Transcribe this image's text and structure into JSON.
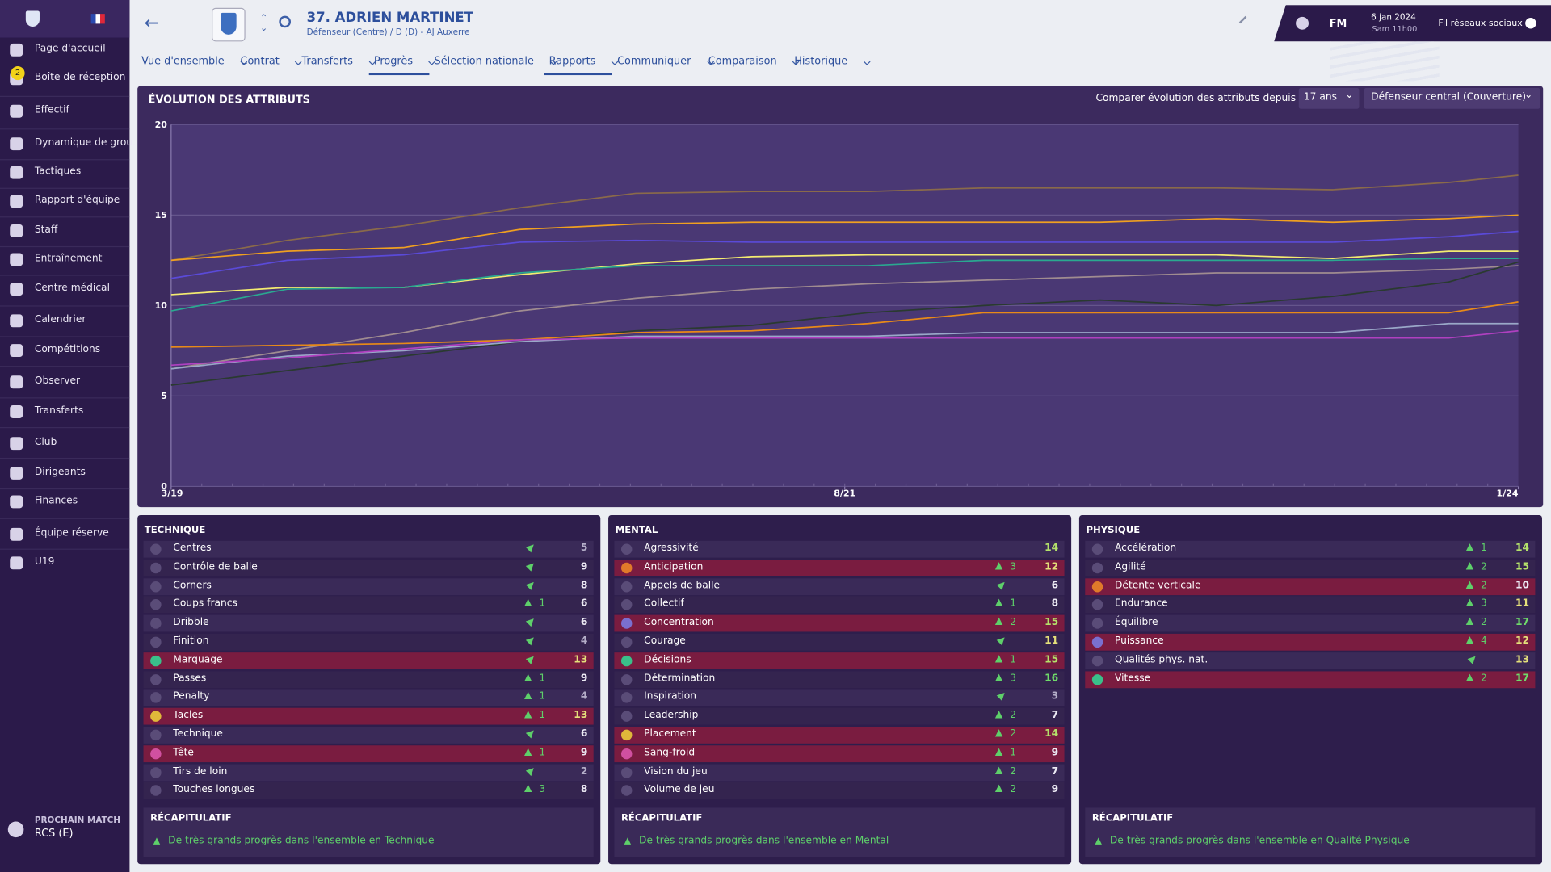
{
  "sidebar": {
    "items": [
      "Page d'accueil",
      "Boîte de réception",
      "Effectif",
      "Dynamique de grou...",
      "Tactiques",
      "Rapport d'équipe",
      "Staff",
      "Entraînement",
      "Centre médical",
      "Calendrier",
      "Compétitions",
      "Observer",
      "Transferts",
      "Club",
      "Dirigeants",
      "Finances",
      "Équipe réserve",
      "U19"
    ],
    "inbox_badge": "2",
    "next_match_label": "PROCHAIN MATCH",
    "next_match": "RCS (E)"
  },
  "header": {
    "player": "37. ADRIEN MARTINET",
    "subtitle": "Défenseur (Centre) / D (D) - AJ Auxerre",
    "brand": "FM",
    "date": "6 jan 2024",
    "time": "Sam 11h00",
    "social": "Fil réseaux sociaux"
  },
  "tabs": [
    {
      "label": "Vue d'ensemble"
    },
    {
      "label": "Contrat"
    },
    {
      "label": "Transferts"
    },
    {
      "label": "Progrès",
      "active": true
    },
    {
      "label": "Sélection nationale"
    },
    {
      "label": "Rapports",
      "active": true
    },
    {
      "label": "Communiquer"
    },
    {
      "label": "Comparaison"
    },
    {
      "label": "Historique"
    }
  ],
  "compare": {
    "label": "Comparer évolution des attributs depuis",
    "age": "17 ans",
    "role": "Défenseur central (Couverture)"
  },
  "chart_data": {
    "type": "line",
    "title": "ÉVOLUTION DES ATTRIBUTS",
    "x": [
      0,
      5,
      10,
      15,
      20,
      25,
      30,
      35,
      40,
      45,
      50,
      55,
      58
    ],
    "xlim": [
      0,
      58
    ],
    "xticks": [
      {
        "value": 0,
        "label": "3/19"
      },
      {
        "value": 29,
        "label": "8/21"
      },
      {
        "value": 58,
        "label": "1/24"
      }
    ],
    "ylim": [
      0,
      20
    ],
    "yticks": [
      0,
      5,
      10,
      15,
      20
    ],
    "grid": true,
    "series": [
      {
        "color": "#8a6a4a",
        "values": [
          12.5,
          13.6,
          14.4,
          15.4,
          16.2,
          16.3,
          16.3,
          16.5,
          16.5,
          16.5,
          16.4,
          16.8,
          17.2
        ]
      },
      {
        "color": "#f0a020",
        "values": [
          12.5,
          13,
          13.2,
          14.2,
          14.5,
          14.6,
          14.6,
          14.6,
          14.6,
          14.8,
          14.6,
          14.8,
          15
        ]
      },
      {
        "color": "#5a4ad8",
        "values": [
          11.5,
          12.5,
          12.8,
          13.5,
          13.6,
          13.5,
          13.5,
          13.5,
          13.5,
          13.5,
          13.5,
          13.8,
          14.1
        ]
      },
      {
        "color": "#f4ec70",
        "values": [
          10.6,
          11,
          11,
          11.7,
          12.3,
          12.7,
          12.8,
          12.8,
          12.8,
          12.8,
          12.6,
          13,
          13
        ]
      },
      {
        "color": "#2aa890",
        "values": [
          9.7,
          10.9,
          11,
          11.8,
          12.2,
          12.2,
          12.2,
          12.5,
          12.5,
          12.5,
          12.5,
          12.6,
          12.6
        ]
      },
      {
        "color": "#a08c90",
        "values": [
          6.5,
          7.5,
          8.5,
          9.7,
          10.4,
          10.9,
          11.2,
          11.4,
          11.6,
          11.8,
          11.8,
          12,
          12.2
        ]
      },
      {
        "color": "#2a3a30",
        "values": [
          5.6,
          6.4,
          7.2,
          8,
          8.6,
          8.9,
          9.6,
          10,
          10.3,
          10,
          10.5,
          11.3,
          12.4
        ]
      },
      {
        "color": "#e88a18",
        "values": [
          7.7,
          7.8,
          7.9,
          8.1,
          8.5,
          8.6,
          9,
          9.6,
          9.6,
          9.6,
          9.6,
          9.6,
          10.2
        ]
      },
      {
        "color": "#9aa8c8",
        "values": [
          6.5,
          7.2,
          7.5,
          8,
          8.3,
          8.3,
          8.3,
          8.5,
          8.5,
          8.5,
          8.5,
          9,
          9
        ]
      },
      {
        "color": "#b040c0",
        "values": [
          6.7,
          7.1,
          7.6,
          8.1,
          8.2,
          8.2,
          8.2,
          8.2,
          8.2,
          8.2,
          8.2,
          8.2,
          8.6
        ]
      }
    ]
  },
  "sections": [
    {
      "title": "TECHNIQUE",
      "summary_title": "RÉCAPITULATIF",
      "summary": "De très grands progrès dans l'ensemble en Technique",
      "rows": [
        {
          "name": "Centres",
          "trend": "slight",
          "value": 5
        },
        {
          "name": "Contrôle de balle",
          "trend": "slight",
          "value": 9
        },
        {
          "name": "Corners",
          "trend": "slight",
          "value": 8
        },
        {
          "name": "Coups francs",
          "trend": "up",
          "change": 1,
          "value": 6
        },
        {
          "name": "Dribble",
          "trend": "slight",
          "value": 6
        },
        {
          "name": "Finition",
          "trend": "slight",
          "value": 4
        },
        {
          "name": "Marquage",
          "trend": "slight",
          "value": 13,
          "highlight": true
        },
        {
          "name": "Passes",
          "trend": "up",
          "change": 1,
          "value": 9
        },
        {
          "name": "Penalty",
          "trend": "up",
          "change": 1,
          "value": 4
        },
        {
          "name": "Tacles",
          "trend": "up",
          "change": 1,
          "value": 13,
          "highlight": true
        },
        {
          "name": "Technique",
          "trend": "slight",
          "value": 6
        },
        {
          "name": "Tête",
          "trend": "up",
          "change": 1,
          "value": 9,
          "highlight": true
        },
        {
          "name": "Tirs de loin",
          "trend": "slight",
          "value": 2
        },
        {
          "name": "Touches longues",
          "trend": "up",
          "change": 3,
          "value": 8
        }
      ]
    },
    {
      "title": "MENTAL",
      "summary_title": "RÉCAPITULATIF",
      "summary": "De très grands progrès dans l'ensemble en Mental",
      "rows": [
        {
          "name": "Agressivité",
          "value": 14
        },
        {
          "name": "Anticipation",
          "trend": "up",
          "change": 3,
          "value": 12,
          "highlight": true
        },
        {
          "name": "Appels de balle",
          "trend": "slight",
          "value": 6
        },
        {
          "name": "Collectif",
          "trend": "up",
          "change": 1,
          "value": 8
        },
        {
          "name": "Concentration",
          "trend": "up",
          "change": 2,
          "value": 15,
          "highlight": true
        },
        {
          "name": "Courage",
          "trend": "slight",
          "value": 11
        },
        {
          "name": "Décisions",
          "trend": "up",
          "change": 1,
          "value": 15,
          "highlight": true
        },
        {
          "name": "Détermination",
          "trend": "up",
          "change": 3,
          "value": 16
        },
        {
          "name": "Inspiration",
          "trend": "slight",
          "value": 3
        },
        {
          "name": "Leadership",
          "trend": "up",
          "change": 2,
          "value": 7
        },
        {
          "name": "Placement",
          "trend": "up",
          "change": 2,
          "value": 14,
          "highlight": true
        },
        {
          "name": "Sang-froid",
          "trend": "up",
          "change": 1,
          "value": 9,
          "highlight": true
        },
        {
          "name": "Vision du jeu",
          "trend": "up",
          "change": 2,
          "value": 7
        },
        {
          "name": "Volume de jeu",
          "trend": "up",
          "change": 2,
          "value": 9
        }
      ]
    },
    {
      "title": "PHYSIQUE",
      "summary_title": "RÉCAPITULATIF",
      "summary": "De très grands progrès dans l'ensemble en Qualité Physique",
      "rows": [
        {
          "name": "Accélération",
          "trend": "up",
          "change": 1,
          "value": 14
        },
        {
          "name": "Agilité",
          "trend": "up",
          "change": 2,
          "value": 15
        },
        {
          "name": "Détente verticale",
          "trend": "up",
          "change": 2,
          "value": 10,
          "highlight": true
        },
        {
          "name": "Endurance",
          "trend": "up",
          "change": 3,
          "value": 11
        },
        {
          "name": "Équilibre",
          "trend": "up",
          "change": 2,
          "value": 17
        },
        {
          "name": "Puissance",
          "trend": "up",
          "change": 4,
          "value": 12,
          "highlight": true
        },
        {
          "name": "Qualités phys. nat.",
          "trend": "slight",
          "value": 13
        },
        {
          "name": "Vitesse",
          "trend": "up",
          "change": 2,
          "value": 17,
          "highlight": true
        }
      ]
    }
  ]
}
